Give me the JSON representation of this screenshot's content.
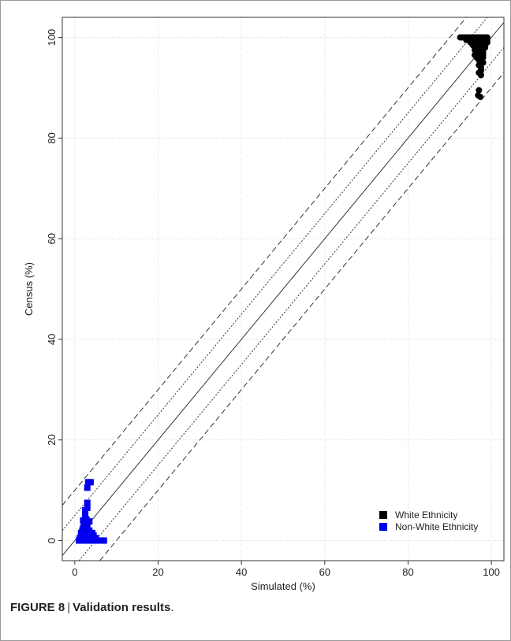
{
  "caption": {
    "label": "FIGURE 8",
    "separator": "|",
    "title": "Validation results",
    "end": "."
  },
  "chart_data": {
    "type": "scatter",
    "xlabel": "Simulated (%)",
    "ylabel": "Census (%)",
    "xlim": [
      -3,
      103
    ],
    "ylim": [
      -4,
      104
    ],
    "xticks": [
      0,
      20,
      40,
      60,
      80,
      100
    ],
    "yticks": [
      0,
      20,
      40,
      60,
      80,
      100
    ],
    "grid": true,
    "legend_position": "bottom-right",
    "reference_lines": [
      {
        "style": "solid",
        "offset": 0
      },
      {
        "style": "dotted",
        "offset": 5
      },
      {
        "style": "dotted",
        "offset": -5
      },
      {
        "style": "dashed",
        "offset": 10
      },
      {
        "style": "dashed",
        "offset": -10
      }
    ],
    "series": [
      {
        "name": "White Ethnicity",
        "color": "#000000",
        "marker": "circle",
        "points": [
          [
            92.5,
            100
          ],
          [
            93,
            100
          ],
          [
            93.5,
            100
          ],
          [
            94,
            100
          ],
          [
            94.5,
            100
          ],
          [
            95,
            100
          ],
          [
            95.5,
            100
          ],
          [
            96,
            100
          ],
          [
            96.5,
            100
          ],
          [
            97,
            100
          ],
          [
            97.5,
            100
          ],
          [
            98,
            100
          ],
          [
            98.5,
            100
          ],
          [
            99,
            100
          ],
          [
            94,
            99.5
          ],
          [
            95,
            99.5
          ],
          [
            95.5,
            99.5
          ],
          [
            96,
            99.5
          ],
          [
            96.5,
            99.5
          ],
          [
            97,
            99.5
          ],
          [
            97.5,
            99.5
          ],
          [
            98,
            99.5
          ],
          [
            98.5,
            99.5
          ],
          [
            99,
            99.5
          ],
          [
            95,
            99
          ],
          [
            95.5,
            99
          ],
          [
            96,
            99
          ],
          [
            96.5,
            99
          ],
          [
            97,
            99
          ],
          [
            97.5,
            99
          ],
          [
            98,
            99
          ],
          [
            98.5,
            99
          ],
          [
            99,
            99
          ],
          [
            95.5,
            98.5
          ],
          [
            96,
            98.5
          ],
          [
            96.5,
            98.5
          ],
          [
            97,
            98.5
          ],
          [
            97.5,
            98.5
          ],
          [
            98,
            98.5
          ],
          [
            98.5,
            98.5
          ],
          [
            96,
            98
          ],
          [
            96.5,
            98
          ],
          [
            97,
            98
          ],
          [
            97.5,
            98
          ],
          [
            98,
            98
          ],
          [
            98.5,
            98
          ],
          [
            96,
            97.5
          ],
          [
            96.5,
            97.5
          ],
          [
            97,
            97.5
          ],
          [
            97.5,
            97.5
          ],
          [
            98,
            97.5
          ],
          [
            96.5,
            97
          ],
          [
            97,
            97
          ],
          [
            97.5,
            97
          ],
          [
            98,
            97
          ],
          [
            96,
            96.5
          ],
          [
            97,
            96.5
          ],
          [
            97.5,
            96.5
          ],
          [
            98,
            96.5
          ],
          [
            96.5,
            96
          ],
          [
            97,
            96
          ],
          [
            97.5,
            96
          ],
          [
            98,
            96
          ],
          [
            97,
            95.5
          ],
          [
            97.5,
            95.5
          ],
          [
            97.5,
            95
          ],
          [
            98,
            95
          ],
          [
            97,
            94.5
          ],
          [
            97.5,
            94
          ],
          [
            97.5,
            93.5
          ],
          [
            97,
            93
          ],
          [
            97.5,
            92.5
          ],
          [
            97,
            89.5
          ],
          [
            96.8,
            88.5
          ],
          [
            97.3,
            88.2
          ]
        ]
      },
      {
        "name": "Non-White Ethnicity",
        "color": "#0000ee",
        "marker": "square",
        "points": [
          [
            1,
            0
          ],
          [
            1.5,
            0
          ],
          [
            2,
            0
          ],
          [
            2.5,
            0
          ],
          [
            3,
            0
          ],
          [
            3.5,
            0
          ],
          [
            4,
            0
          ],
          [
            4.5,
            0
          ],
          [
            5,
            0
          ],
          [
            5.5,
            0
          ],
          [
            6,
            0
          ],
          [
            6.5,
            0
          ],
          [
            7,
            0
          ],
          [
            1.2,
            0.5
          ],
          [
            2,
            0.5
          ],
          [
            2.8,
            0.5
          ],
          [
            3.5,
            0.5
          ],
          [
            4.2,
            0.5
          ],
          [
            5,
            0.5
          ],
          [
            1.5,
            1
          ],
          [
            2.2,
            1
          ],
          [
            3,
            1
          ],
          [
            3.8,
            1
          ],
          [
            4.5,
            1
          ],
          [
            1.5,
            1.5
          ],
          [
            2.5,
            1.5
          ],
          [
            3.2,
            1.5
          ],
          [
            4.2,
            1.5
          ],
          [
            1.8,
            2
          ],
          [
            2.5,
            2
          ],
          [
            3.5,
            2
          ],
          [
            2,
            2.5
          ],
          [
            3,
            2.5
          ],
          [
            2.2,
            3
          ],
          [
            3,
            3
          ],
          [
            2.5,
            3.5
          ],
          [
            3.5,
            3.8
          ],
          [
            2,
            4
          ],
          [
            2.8,
            4.2
          ],
          [
            2.5,
            5
          ],
          [
            2.5,
            6
          ],
          [
            3,
            6.5
          ],
          [
            3,
            7.5
          ],
          [
            3,
            10.5
          ],
          [
            3.2,
            11.6
          ],
          [
            3.8,
            11.6
          ]
        ]
      }
    ]
  }
}
